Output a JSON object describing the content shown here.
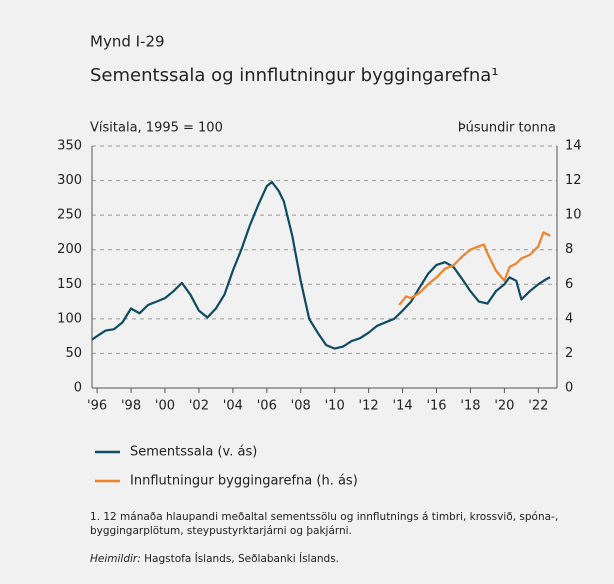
{
  "chart_data": {
    "type": "line",
    "figure_label": "Mynd I-29",
    "title": "Sementssala og innflutningur byggingarefna¹",
    "ylabel": "Vísitala, 1995 = 100",
    "y2label": "Þúsundir tonna",
    "xlim": [
      1995.7,
      2023.1
    ],
    "xticks": [
      {
        "value": 1996,
        "label": "'96"
      },
      {
        "value": 1998,
        "label": "'98"
      },
      {
        "value": 2000,
        "label": "'00"
      },
      {
        "value": 2002,
        "label": "'02"
      },
      {
        "value": 2004,
        "label": "'04"
      },
      {
        "value": 2006,
        "label": "'06"
      },
      {
        "value": 2008,
        "label": "'08"
      },
      {
        "value": 2010,
        "label": "'10"
      },
      {
        "value": 2012,
        "label": "'12"
      },
      {
        "value": 2014,
        "label": "'14"
      },
      {
        "value": 2016,
        "label": "'16"
      },
      {
        "value": 2018,
        "label": "'18"
      },
      {
        "value": 2020,
        "label": "'20"
      },
      {
        "value": 2022,
        "label": "'22"
      }
    ],
    "ylim": [
      0,
      350
    ],
    "yticks": [
      0,
      50,
      100,
      150,
      200,
      250,
      300,
      350
    ],
    "y2lim": [
      0,
      14
    ],
    "y2ticks": [
      0,
      2,
      4,
      6,
      8,
      10,
      12,
      14
    ],
    "grid": true,
    "series": [
      {
        "name": "Sementssala (v. ás)",
        "color": "#0e4a60",
        "x": [
          1995.7,
          1996,
          1996.5,
          1997,
          1997.5,
          1998,
          1998.5,
          1999,
          1999.5,
          2000,
          2000.5,
          2001,
          2001.5,
          2002,
          2002.5,
          2003,
          2003.5,
          2004,
          2004.5,
          2005,
          2005.5,
          2006,
          2006.3,
          2006.7,
          2007,
          2007.5,
          2008,
          2008.5,
          2009,
          2009.5,
          2010,
          2010.5,
          2011,
          2011.5,
          2012,
          2012.5,
          2013,
          2013.5,
          2014,
          2014.5,
          2015,
          2015.5,
          2016,
          2016.5,
          2017,
          2017.5,
          2018,
          2018.5,
          2019,
          2019.5,
          2020,
          2020.3,
          2020.7,
          2021,
          2021.5,
          2022,
          2022.5,
          2022.7
        ],
        "values": [
          70,
          75,
          83,
          85,
          95,
          115,
          108,
          120,
          125,
          130,
          140,
          152,
          135,
          112,
          102,
          115,
          135,
          170,
          200,
          235,
          265,
          292,
          298,
          285,
          270,
          220,
          155,
          100,
          80,
          62,
          57,
          60,
          68,
          72,
          80,
          90,
          95,
          100,
          112,
          125,
          145,
          165,
          178,
          182,
          175,
          158,
          140,
          125,
          122,
          140,
          150,
          160,
          155,
          128,
          140,
          150,
          158,
          160
        ]
      },
      {
        "name": "Innflutningur byggingarefna (h. ás)",
        "color": "#f0832a",
        "axis": "y2",
        "x": [
          2013.8,
          2014.2,
          2014.5,
          2015,
          2015.5,
          2016,
          2016.5,
          2017,
          2017.5,
          2018,
          2018.5,
          2018.8,
          2019,
          2019.5,
          2020,
          2020.3,
          2020.7,
          2021,
          2021.5,
          2022,
          2022.3,
          2022.7
        ],
        "values": [
          4.8,
          5.3,
          5.2,
          5.5,
          6.0,
          6.4,
          6.9,
          7.1,
          7.6,
          8.0,
          8.2,
          8.3,
          7.8,
          6.8,
          6.2,
          7.0,
          7.2,
          7.5,
          7.7,
          8.2,
          9.0,
          8.8
        ]
      }
    ],
    "footnote": "1. 12 mánaða hlaupandi meðaltal sementssölu og innflutnings á timbri, krossvið, spóna-, byggingarplötum, steypustyrktarjárni og þakjárni.",
    "source_label": "Heimildir:",
    "source": "Hagstofa Íslands, Seðlabanki Íslands."
  }
}
